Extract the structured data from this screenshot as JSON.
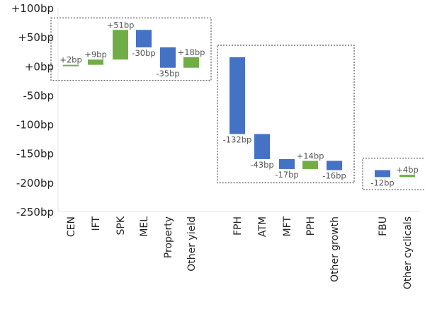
{
  "chart_data": {
    "type": "bar",
    "subtype": "waterfall",
    "title": "",
    "xlabel": "",
    "ylabel": "",
    "ylim": [
      -250,
      100
    ],
    "yticks": [
      100,
      50,
      0,
      -50,
      -100,
      -150,
      -200,
      -250
    ],
    "ytick_labels": [
      "+100bp",
      "+50bp",
      "+0bp",
      "-50bp",
      "-100bp",
      "-150bp",
      "-200bp",
      "-250bp"
    ],
    "grid": false,
    "legend": "none",
    "categories": [
      "CEN",
      "IFT",
      "SPK",
      "MEL",
      "Property",
      "Other yield",
      "FPH",
      "ATM",
      "MFT",
      "PPH",
      "Other growth",
      "FBU",
      "Other cyclicals"
    ],
    "values": [
      2,
      9,
      51,
      -30,
      -35,
      18,
      -132,
      -43,
      -17,
      14,
      -16,
      -12,
      4
    ],
    "data_labels": [
      "+2bp",
      "+9bp",
      "+51bp",
      "-30bp",
      "-35bp",
      "+18bp",
      "-132bp",
      "-43bp",
      "-17bp",
      "+14bp",
      "-16bp",
      "-12bp",
      "+4bp"
    ],
    "groups": [
      [
        "CEN",
        "IFT",
        "SPK",
        "MEL",
        "Property",
        "Other yield"
      ],
      [
        "FPH",
        "ATM",
        "MFT",
        "PPH",
        "Other growth"
      ],
      [
        "FBU",
        "Other cyclicals"
      ]
    ],
    "colors": {
      "positive": "#70ad47",
      "negative": "#4472c4",
      "axis": "#e6e6e6",
      "text": "#333333",
      "label": "#555555"
    }
  }
}
